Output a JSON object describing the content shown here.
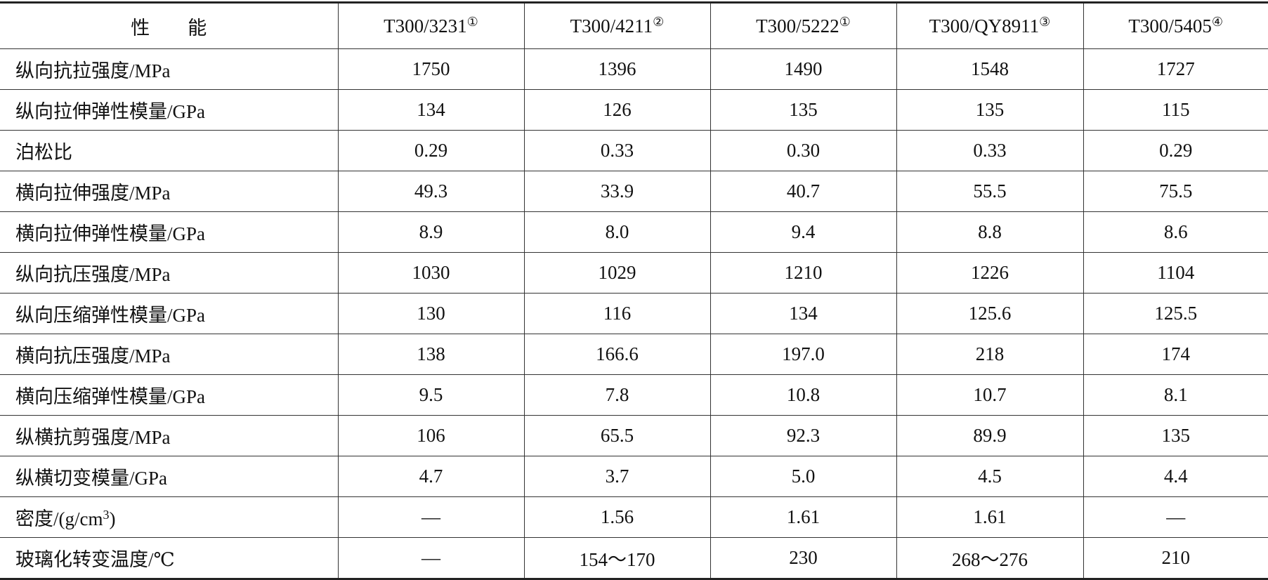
{
  "header": {
    "property": "性　　能",
    "columns": [
      {
        "text": "T300/3231",
        "note": "①"
      },
      {
        "text": "T300/4211",
        "note": "②"
      },
      {
        "text": "T300/5222",
        "note": "①"
      },
      {
        "text": "T300/QY8911",
        "note": "③"
      },
      {
        "text": "T300/5405",
        "note": "④"
      }
    ]
  },
  "rows": [
    {
      "property": "纵向抗拉强度/MPa",
      "values": [
        "1750",
        "1396",
        "1490",
        "1548",
        "1727"
      ]
    },
    {
      "property": "纵向拉伸弹性模量/GPa",
      "values": [
        "134",
        "126",
        "135",
        "135",
        "115"
      ]
    },
    {
      "property": "泊松比",
      "values": [
        "0.29",
        "0.33",
        "0.30",
        "0.33",
        "0.29"
      ]
    },
    {
      "property": "横向拉伸强度/MPa",
      "values": [
        "49.3",
        "33.9",
        "40.7",
        "55.5",
        "75.5"
      ]
    },
    {
      "property": "横向拉伸弹性模量/GPa",
      "values": [
        "8.9",
        "8.0",
        "9.4",
        "8.8",
        "8.6"
      ]
    },
    {
      "property": "纵向抗压强度/MPa",
      "values": [
        "1030",
        "1029",
        "1210",
        "1226",
        "1104"
      ]
    },
    {
      "property": "纵向压缩弹性模量/GPa",
      "values": [
        "130",
        "116",
        "134",
        "125.6",
        "125.5"
      ]
    },
    {
      "property": "横向抗压强度/MPa",
      "values": [
        "138",
        "166.6",
        "197.0",
        "218",
        "174"
      ]
    },
    {
      "property": "横向压缩弹性模量/GPa",
      "values": [
        "9.5",
        "7.8",
        "10.8",
        "10.7",
        "8.1"
      ]
    },
    {
      "property": "纵横抗剪强度/MPa",
      "values": [
        "106",
        "65.5",
        "92.3",
        "89.9",
        "135"
      ]
    },
    {
      "property": "纵横切变模量/GPa",
      "values": [
        "4.7",
        "3.7",
        "5.0",
        "4.5",
        "4.4"
      ]
    },
    {
      "property": {
        "text": "密度/(g/cm",
        "sup": "3",
        "tail": ")"
      },
      "values": [
        "—",
        "1.56",
        "1.61",
        "1.61",
        "—"
      ]
    },
    {
      "property": "玻璃化转变温度/℃",
      "values": [
        "—",
        "154～170",
        "230",
        "268～276",
        "210"
      ]
    }
  ]
}
